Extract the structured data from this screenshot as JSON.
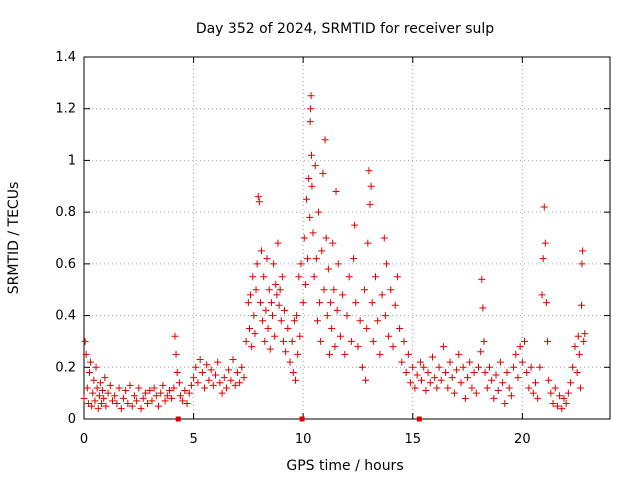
{
  "chart_data": {
    "type": "scatter",
    "title": "Day 352 of 2024, SRMTID for receiver sulp",
    "xlabel": "GPS time / hours",
    "ylabel": "SRMTID / TECUs",
    "xlim": [
      0,
      24
    ],
    "ylim": [
      0,
      1.4
    ],
    "xticks": [
      0,
      5,
      10,
      15,
      20
    ],
    "xtick_labels": [
      "0",
      "5",
      "10",
      "15",
      "20"
    ],
    "yticks": [
      0,
      0.2,
      0.4,
      0.6,
      0.8,
      1.0,
      1.2,
      1.4
    ],
    "ytick_labels": [
      "0",
      "0.2",
      "0.4",
      "0.6",
      "0.8",
      "1",
      "1.2",
      "1.4"
    ],
    "grid": true,
    "marker": "plus",
    "color": "#e00000",
    "series": [
      {
        "name": "SRMTID",
        "points": [
          [
            0.0,
            0.08
          ],
          [
            0.05,
            0.3
          ],
          [
            0.1,
            0.25
          ],
          [
            0.15,
            0.12
          ],
          [
            0.2,
            0.06
          ],
          [
            0.25,
            0.18
          ],
          [
            0.3,
            0.22
          ],
          [
            0.35,
            0.05
          ],
          [
            0.4,
            0.1
          ],
          [
            0.45,
            0.15
          ],
          [
            0.5,
            0.07
          ],
          [
            0.55,
            0.2
          ],
          [
            0.6,
            0.12
          ],
          [
            0.65,
            0.04
          ],
          [
            0.7,
            0.09
          ],
          [
            0.75,
            0.14
          ],
          [
            0.8,
            0.06
          ],
          [
            0.85,
            0.11
          ],
          [
            0.9,
            0.08
          ],
          [
            0.95,
            0.16
          ],
          [
            1.0,
            0.05
          ],
          [
            1.1,
            0.1
          ],
          [
            1.2,
            0.13
          ],
          [
            1.3,
            0.07
          ],
          [
            1.4,
            0.09
          ],
          [
            1.5,
            0.06
          ],
          [
            1.6,
            0.12
          ],
          [
            1.7,
            0.04
          ],
          [
            1.8,
            0.08
          ],
          [
            1.9,
            0.11
          ],
          [
            2.0,
            0.06
          ],
          [
            2.1,
            0.13
          ],
          [
            2.2,
            0.05
          ],
          [
            2.3,
            0.09
          ],
          [
            2.4,
            0.07
          ],
          [
            2.5,
            0.12
          ],
          [
            2.6,
            0.04
          ],
          [
            2.7,
            0.08
          ],
          [
            2.8,
            0.1
          ],
          [
            2.9,
            0.06
          ],
          [
            3.0,
            0.11
          ],
          [
            3.1,
            0.07
          ],
          [
            3.2,
            0.12
          ],
          [
            3.3,
            0.09
          ],
          [
            3.4,
            0.05
          ],
          [
            3.5,
            0.1
          ],
          [
            3.6,
            0.13
          ],
          [
            3.7,
            0.07
          ],
          [
            3.8,
            0.09
          ],
          [
            3.9,
            0.11
          ],
          [
            4.0,
            0.08
          ],
          [
            4.1,
            0.12
          ],
          [
            4.15,
            0.32
          ],
          [
            4.2,
            0.25
          ],
          [
            4.25,
            0.18
          ],
          [
            4.3,
            0.0
          ],
          [
            4.35,
            0.14
          ],
          [
            4.4,
            0.09
          ],
          [
            4.5,
            0.07
          ],
          [
            4.6,
            0.11
          ],
          [
            4.7,
            0.06
          ],
          [
            4.8,
            0.1
          ],
          [
            4.9,
            0.13
          ],
          [
            5.0,
            0.16
          ],
          [
            5.1,
            0.2
          ],
          [
            5.2,
            0.14
          ],
          [
            5.3,
            0.23
          ],
          [
            5.4,
            0.18
          ],
          [
            5.5,
            0.12
          ],
          [
            5.6,
            0.21
          ],
          [
            5.7,
            0.15
          ],
          [
            5.8,
            0.19
          ],
          [
            5.9,
            0.13
          ],
          [
            6.0,
            0.17
          ],
          [
            6.1,
            0.22
          ],
          [
            6.2,
            0.14
          ],
          [
            6.3,
            0.1
          ],
          [
            6.4,
            0.16
          ],
          [
            6.5,
            0.12
          ],
          [
            6.6,
            0.19
          ],
          [
            6.7,
            0.15
          ],
          [
            6.8,
            0.23
          ],
          [
            6.9,
            0.13
          ],
          [
            7.0,
            0.18
          ],
          [
            7.1,
            0.14
          ],
          [
            7.2,
            0.2
          ],
          [
            7.3,
            0.16
          ],
          [
            7.4,
            0.3
          ],
          [
            7.5,
            0.45
          ],
          [
            7.55,
            0.35
          ],
          [
            7.6,
            0.48
          ],
          [
            7.65,
            0.28
          ],
          [
            7.7,
            0.55
          ],
          [
            7.75,
            0.4
          ],
          [
            7.8,
            0.33
          ],
          [
            7.85,
            0.5
          ],
          [
            7.9,
            0.6
          ],
          [
            7.95,
            0.86
          ],
          [
            8.0,
            0.84
          ],
          [
            8.05,
            0.45
          ],
          [
            8.1,
            0.65
          ],
          [
            8.15,
            0.38
          ],
          [
            8.2,
            0.55
          ],
          [
            8.25,
            0.3
          ],
          [
            8.3,
            0.42
          ],
          [
            8.35,
            0.62
          ],
          [
            8.4,
            0.35
          ],
          [
            8.45,
            0.5
          ],
          [
            8.5,
            0.27
          ],
          [
            8.55,
            0.45
          ],
          [
            8.6,
            0.4
          ],
          [
            8.65,
            0.6
          ],
          [
            8.7,
            0.32
          ],
          [
            8.75,
            0.52
          ],
          [
            8.8,
            0.48
          ],
          [
            8.85,
            0.68
          ],
          [
            8.9,
            0.44
          ],
          [
            8.95,
            0.5
          ],
          [
            9.0,
            0.38
          ],
          [
            9.05,
            0.55
          ],
          [
            9.1,
            0.3
          ],
          [
            9.15,
            0.42
          ],
          [
            9.2,
            0.26
          ],
          [
            9.3,
            0.35
          ],
          [
            9.4,
            0.22
          ],
          [
            9.5,
            0.3
          ],
          [
            9.55,
            0.18
          ],
          [
            9.6,
            0.38
          ],
          [
            9.65,
            0.15
          ],
          [
            9.7,
            0.4
          ],
          [
            9.75,
            0.25
          ],
          [
            9.8,
            0.55
          ],
          [
            9.85,
            0.32
          ],
          [
            9.9,
            0.6
          ],
          [
            9.95,
            0.0
          ],
          [
            10.0,
            0.45
          ],
          [
            10.05,
            0.7
          ],
          [
            10.1,
            0.52
          ],
          [
            10.15,
            0.85
          ],
          [
            10.2,
            0.62
          ],
          [
            10.25,
            0.93
          ],
          [
            10.3,
            0.78
          ],
          [
            10.32,
            1.15
          ],
          [
            10.34,
            1.2
          ],
          [
            10.36,
            1.25
          ],
          [
            10.38,
            1.02
          ],
          [
            10.4,
            0.9
          ],
          [
            10.45,
            0.72
          ],
          [
            10.5,
            0.55
          ],
          [
            10.55,
            0.98
          ],
          [
            10.6,
            0.62
          ],
          [
            10.65,
            0.38
          ],
          [
            10.7,
            0.8
          ],
          [
            10.75,
            0.45
          ],
          [
            10.8,
            0.3
          ],
          [
            10.85,
            0.65
          ],
          [
            10.9,
            0.95
          ],
          [
            10.95,
            0.5
          ],
          [
            11.0,
            1.08
          ],
          [
            11.05,
            0.7
          ],
          [
            11.1,
            0.4
          ],
          [
            11.15,
            0.58
          ],
          [
            11.2,
            0.25
          ],
          [
            11.25,
            0.45
          ],
          [
            11.3,
            0.35
          ],
          [
            11.35,
            0.68
          ],
          [
            11.4,
            0.5
          ],
          [
            11.45,
            0.28
          ],
          [
            11.5,
            0.88
          ],
          [
            11.55,
            0.42
          ],
          [
            11.6,
            0.6
          ],
          [
            11.7,
            0.32
          ],
          [
            11.8,
            0.48
          ],
          [
            11.9,
            0.25
          ],
          [
            12.0,
            0.4
          ],
          [
            12.1,
            0.55
          ],
          [
            12.2,
            0.3
          ],
          [
            12.3,
            0.62
          ],
          [
            12.35,
            0.75
          ],
          [
            12.4,
            0.45
          ],
          [
            12.5,
            0.28
          ],
          [
            12.6,
            0.38
          ],
          [
            12.7,
            0.2
          ],
          [
            12.8,
            0.5
          ],
          [
            12.85,
            0.15
          ],
          [
            12.9,
            0.35
          ],
          [
            12.95,
            0.68
          ],
          [
            13.0,
            0.96
          ],
          [
            13.05,
            0.83
          ],
          [
            13.1,
            0.9
          ],
          [
            13.15,
            0.45
          ],
          [
            13.2,
            0.3
          ],
          [
            13.3,
            0.55
          ],
          [
            13.4,
            0.38
          ],
          [
            13.5,
            0.25
          ],
          [
            13.6,
            0.48
          ],
          [
            13.7,
            0.7
          ],
          [
            13.75,
            0.4
          ],
          [
            13.8,
            0.6
          ],
          [
            13.9,
            0.32
          ],
          [
            14.0,
            0.5
          ],
          [
            14.1,
            0.28
          ],
          [
            14.2,
            0.44
          ],
          [
            14.3,
            0.55
          ],
          [
            14.4,
            0.35
          ],
          [
            14.5,
            0.22
          ],
          [
            14.6,
            0.3
          ],
          [
            14.7,
            0.18
          ],
          [
            14.8,
            0.25
          ],
          [
            14.9,
            0.14
          ],
          [
            15.0,
            0.2
          ],
          [
            15.1,
            0.12
          ],
          [
            15.2,
            0.17
          ],
          [
            15.3,
            0.0
          ],
          [
            15.35,
            0.22
          ],
          [
            15.4,
            0.15
          ],
          [
            15.5,
            0.2
          ],
          [
            15.6,
            0.11
          ],
          [
            15.7,
            0.18
          ],
          [
            15.8,
            0.14
          ],
          [
            15.9,
            0.24
          ],
          [
            16.0,
            0.16
          ],
          [
            16.1,
            0.12
          ],
          [
            16.2,
            0.2
          ],
          [
            16.3,
            0.15
          ],
          [
            16.4,
            0.28
          ],
          [
            16.5,
            0.18
          ],
          [
            16.6,
            0.12
          ],
          [
            16.7,
            0.22
          ],
          [
            16.8,
            0.16
          ],
          [
            16.9,
            0.1
          ],
          [
            17.0,
            0.19
          ],
          [
            17.1,
            0.25
          ],
          [
            17.2,
            0.14
          ],
          [
            17.3,
            0.2
          ],
          [
            17.4,
            0.08
          ],
          [
            17.5,
            0.16
          ],
          [
            17.6,
            0.22
          ],
          [
            17.7,
            0.12
          ],
          [
            17.8,
            0.18
          ],
          [
            17.9,
            0.1
          ],
          [
            18.0,
            0.2
          ],
          [
            18.1,
            0.26
          ],
          [
            18.15,
            0.54
          ],
          [
            18.2,
            0.43
          ],
          [
            18.25,
            0.3
          ],
          [
            18.3,
            0.18
          ],
          [
            18.4,
            0.12
          ],
          [
            18.5,
            0.2
          ],
          [
            18.6,
            0.15
          ],
          [
            18.7,
            0.08
          ],
          [
            18.8,
            0.17
          ],
          [
            18.9,
            0.11
          ],
          [
            19.0,
            0.22
          ],
          [
            19.1,
            0.14
          ],
          [
            19.2,
            0.06
          ],
          [
            19.3,
            0.18
          ],
          [
            19.4,
            0.12
          ],
          [
            19.5,
            0.09
          ],
          [
            19.6,
            0.2
          ],
          [
            19.7,
            0.25
          ],
          [
            19.8,
            0.16
          ],
          [
            19.9,
            0.28
          ],
          [
            20.0,
            0.22
          ],
          [
            20.1,
            0.3
          ],
          [
            20.2,
            0.18
          ],
          [
            20.3,
            0.12
          ],
          [
            20.4,
            0.2
          ],
          [
            20.5,
            0.1
          ],
          [
            20.6,
            0.14
          ],
          [
            20.7,
            0.08
          ],
          [
            20.8,
            0.2
          ],
          [
            20.9,
            0.48
          ],
          [
            20.95,
            0.62
          ],
          [
            21.0,
            0.82
          ],
          [
            21.05,
            0.68
          ],
          [
            21.1,
            0.45
          ],
          [
            21.15,
            0.3
          ],
          [
            21.2,
            0.15
          ],
          [
            21.3,
            0.1
          ],
          [
            21.4,
            0.06
          ],
          [
            21.5,
            0.12
          ],
          [
            21.6,
            0.05
          ],
          [
            21.7,
            0.09
          ],
          [
            21.8,
            0.04
          ],
          [
            21.9,
            0.08
          ],
          [
            22.0,
            0.06
          ],
          [
            22.1,
            0.1
          ],
          [
            22.2,
            0.14
          ],
          [
            22.3,
            0.2
          ],
          [
            22.4,
            0.28
          ],
          [
            22.5,
            0.18
          ],
          [
            22.55,
            0.32
          ],
          [
            22.6,
            0.25
          ],
          [
            22.65,
            0.12
          ],
          [
            22.7,
            0.44
          ],
          [
            22.72,
            0.6
          ],
          [
            22.75,
            0.65
          ],
          [
            22.8,
            0.3
          ],
          [
            22.85,
            0.33
          ]
        ]
      }
    ]
  }
}
